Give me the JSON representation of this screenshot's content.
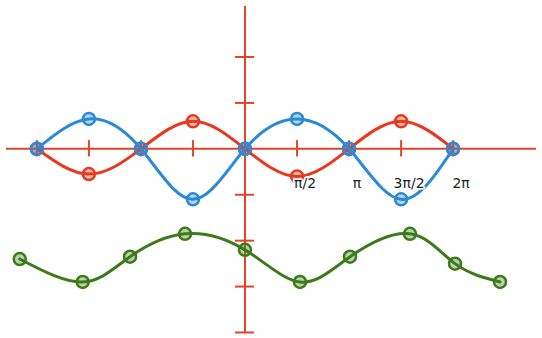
{
  "chart_data": {
    "type": "line",
    "xlim": [
      -7.2,
      8.8
    ],
    "ylim": [
      -4,
      3.1
    ],
    "xticks": [
      {
        "value": -6.2832,
        "label": null
      },
      {
        "value": -4.7124,
        "label": null
      },
      {
        "value": -3.1416,
        "label": null
      },
      {
        "value": -1.5708,
        "label": null
      },
      {
        "value": 1.5708,
        "label": "π/2"
      },
      {
        "value": 3.1416,
        "label": "π"
      },
      {
        "value": 4.7124,
        "label": "3π/2"
      },
      {
        "value": 6.2832,
        "label": "2π"
      }
    ],
    "yticks": [
      2,
      1,
      -1,
      -2,
      -3,
      -4
    ],
    "tick_labels": "x",
    "grid": false,
    "series": [
      {
        "color": "#e8391e",
        "marker": "circle",
        "line_style": "solid",
        "x": [
          -6.2832,
          -4.7124,
          -3.1416,
          -1.5708,
          0,
          1.5708,
          3.1416,
          4.7124,
          6.2832
        ],
        "values": [
          0,
          -0.55,
          0,
          0.6,
          0,
          -0.6,
          0,
          0.6,
          0
        ]
      },
      {
        "color": "#2a8ad6",
        "marker": "circle",
        "line_style": "solid",
        "x": [
          -6.2832,
          -4.7124,
          -3.1416,
          -1.5708,
          0,
          1.5708,
          3.1416,
          4.7124,
          6.2832
        ],
        "values": [
          0,
          0.65,
          0,
          -1.1,
          0,
          0.65,
          0,
          -1.1,
          0
        ]
      },
      {
        "color": "#3d7a1a",
        "marker": "circle",
        "line_style": "solid",
        "x": [
          -6.8,
          -4.9,
          -3.47,
          -1.81,
          0,
          1.66,
          3.17,
          4.98,
          6.34,
          7.7
        ],
        "values": [
          -2.4,
          -2.9,
          -2.35,
          -1.85,
          -2.2,
          -2.9,
          -2.35,
          -1.85,
          -2.5,
          -2.9
        ]
      }
    ]
  }
}
